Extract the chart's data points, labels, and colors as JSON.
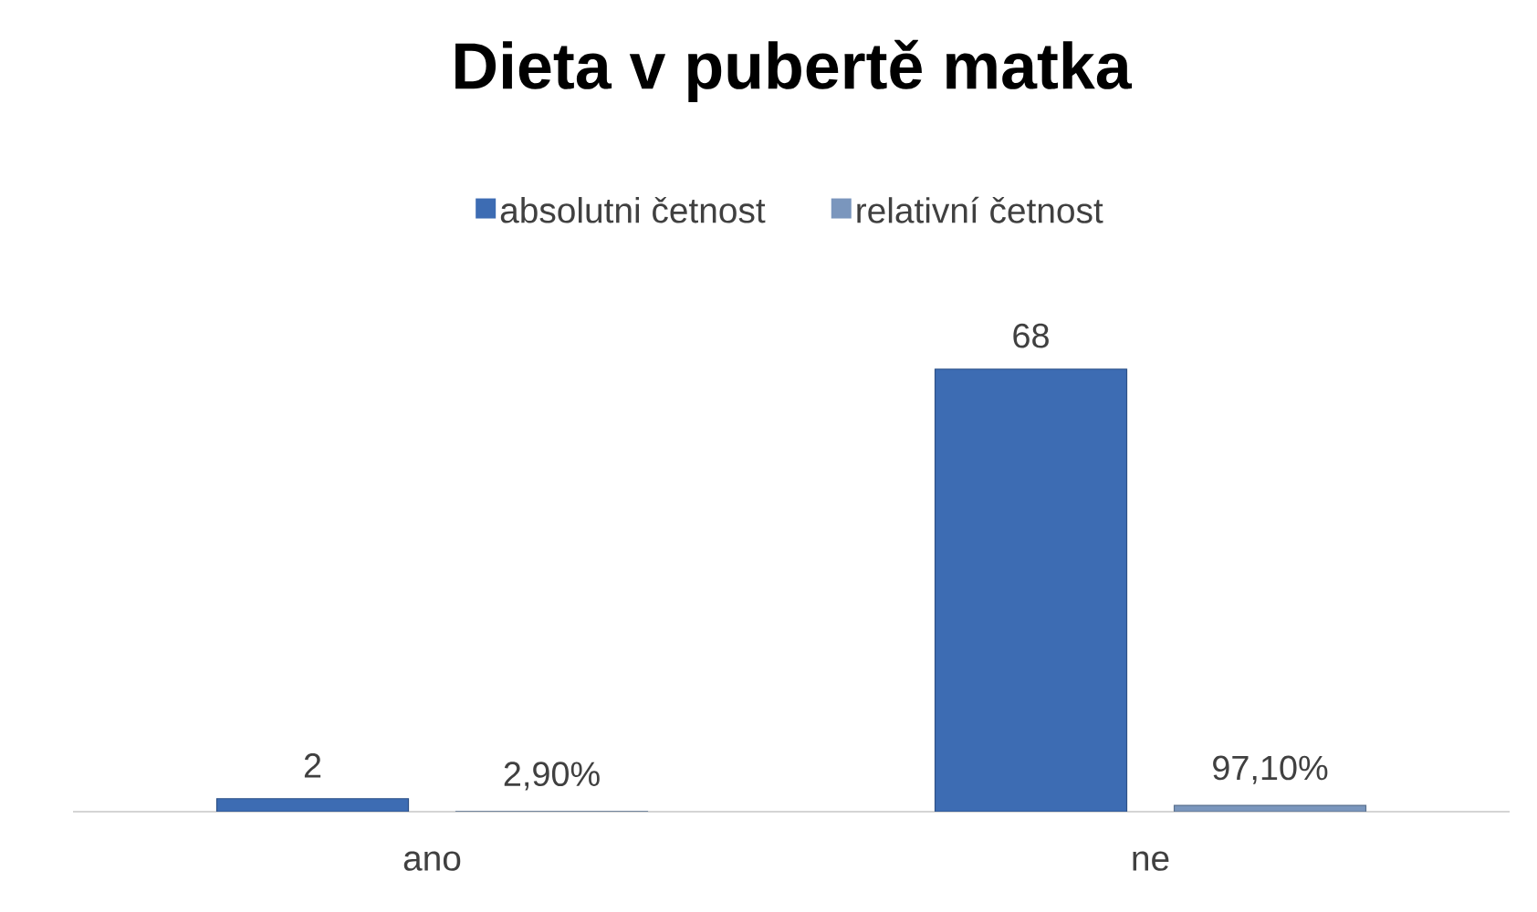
{
  "chart_data": {
    "type": "bar",
    "title": "Dieta v pubertě matka",
    "categories": [
      "ano",
      "ne"
    ],
    "series": [
      {
        "name": "absolutni četnost",
        "color": "#3d6cb3",
        "values": [
          2,
          68
        ],
        "value_labels": [
          "2",
          "68"
        ]
      },
      {
        "name": "relativní četnost",
        "color": "#7a96bd",
        "values": [
          0.029,
          0.971
        ],
        "value_labels": [
          "2,90%",
          "97,10%"
        ]
      }
    ],
    "legend": "top"
  }
}
